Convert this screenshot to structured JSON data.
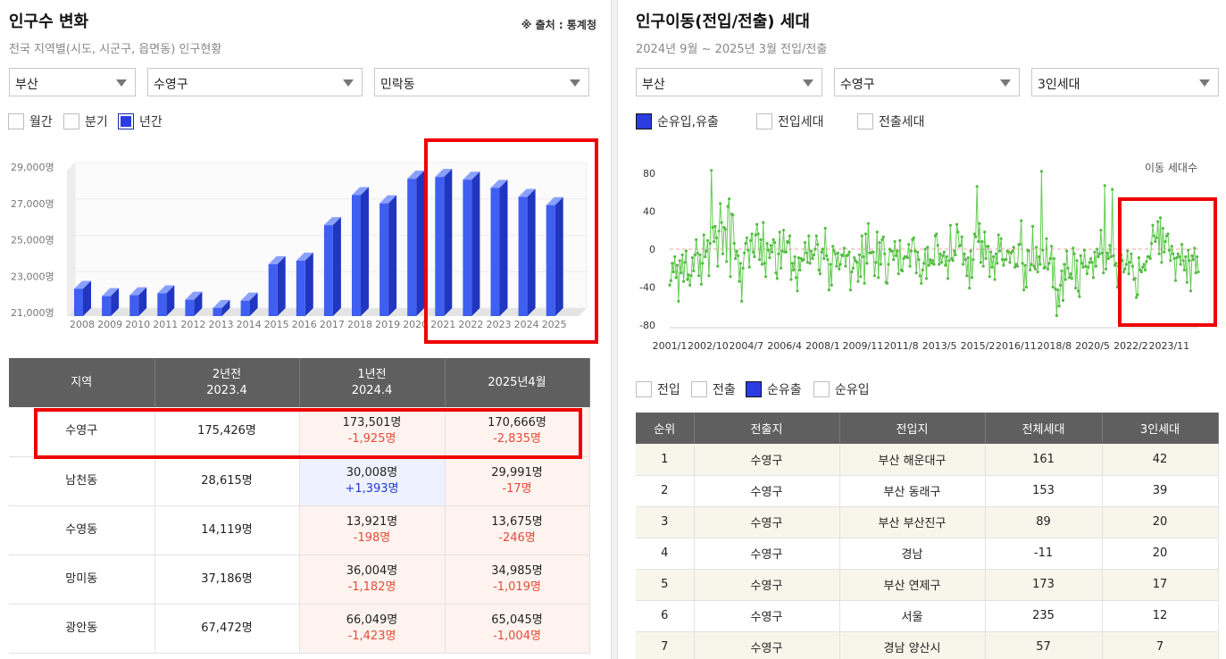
{
  "left": {
    "title": "인구수 변화",
    "source": "※ 출처 : 통계청",
    "subtitle": "전국 지역별(시도, 시군구, 읍면동) 인구현황",
    "selects": [
      "부산",
      "수영구",
      "민락동"
    ],
    "period_options": [
      {
        "label": "월간",
        "checked": false
      },
      {
        "label": "분기",
        "checked": false
      },
      {
        "label": "년간",
        "checked": true
      }
    ],
    "table": {
      "headers": [
        [
          "지역"
        ],
        [
          "2년전",
          "2023.4"
        ],
        [
          "1년전",
          "2024.4"
        ],
        [
          "2025년4월"
        ]
      ],
      "rows": [
        {
          "region": "수영구",
          "two_years": "175,426명",
          "one_year": "173,501명",
          "one_year_change": "-1,925명",
          "now": "170,666명",
          "now_change": "-2,835명"
        },
        {
          "region": "남천동",
          "two_years": "28,615명",
          "one_year": "30,008명",
          "one_year_change": "+1,393명",
          "now": "29,991명",
          "now_change": "-17명"
        },
        {
          "region": "수영동",
          "two_years": "14,119명",
          "one_year": "13,921명",
          "one_year_change": "-198명",
          "now": "13,675명",
          "now_change": "-246명"
        },
        {
          "region": "망미동",
          "two_years": "37,186명",
          "one_year": "36,004명",
          "one_year_change": "-1,182명",
          "now": "34,985명",
          "now_change": "-1,019명"
        },
        {
          "region": "광안동",
          "two_years": "67,472명",
          "one_year": "66,049명",
          "one_year_change": "-1,423명",
          "now": "65,045명",
          "now_change": "-1,004명"
        }
      ]
    }
  },
  "right": {
    "title": "인구이동(전입/전출) 세대",
    "subtitle": "2024년 9월 ~ 2025년 3월 전입/전출",
    "selects": [
      "부산",
      "수영구",
      "3인세대"
    ],
    "series_options": [
      {
        "label": "순유입,유출",
        "checked": true
      },
      {
        "label": "전입세대",
        "checked": false
      },
      {
        "label": "전출세대",
        "checked": false
      }
    ],
    "table_filters": [
      {
        "label": "전입",
        "checked": false
      },
      {
        "label": "전출",
        "checked": false
      },
      {
        "label": "순유출",
        "checked": true
      },
      {
        "label": "순유입",
        "checked": false
      }
    ],
    "table": {
      "headers": [
        "순위",
        "전출지",
        "전입지",
        "전체세대",
        "3인세대"
      ],
      "rows": [
        [
          "1",
          "수영구",
          "부산 해운대구",
          "161",
          "42"
        ],
        [
          "2",
          "수영구",
          "부산 동래구",
          "153",
          "39"
        ],
        [
          "3",
          "수영구",
          "부산 부산진구",
          "89",
          "20"
        ],
        [
          "4",
          "수영구",
          "경남",
          "-11",
          "20"
        ],
        [
          "5",
          "수영구",
          "부산 연제구",
          "173",
          "17"
        ],
        [
          "6",
          "수영구",
          "서울",
          "235",
          "12"
        ],
        [
          "7",
          "수영구",
          "경남 양산시",
          "57",
          "7"
        ]
      ]
    }
  },
  "chart_data": [
    {
      "type": "bar",
      "categories": [
        "2008",
        "2009",
        "2010",
        "2011",
        "2012",
        "2013",
        "2014",
        "2015",
        "2016",
        "2017",
        "2018",
        "2019",
        "2020",
        "2021",
        "2022",
        "2023",
        "2024",
        "2025"
      ],
      "values": [
        22500,
        22100,
        22150,
        22250,
        21900,
        21450,
        21850,
        23850,
        24050,
        26000,
        27650,
        27200,
        28550,
        28650,
        28500,
        28050,
        27550,
        27100
      ],
      "yticks": [
        "21,000명",
        "23,000명",
        "25,000명",
        "27,000명",
        "29,000명"
      ],
      "ylim": [
        21000,
        29000
      ],
      "color": "#3f5ff0"
    },
    {
      "type": "line",
      "title": "이동 세대수",
      "xticks": [
        "2001/1",
        "2002/10",
        "2004/7",
        "2006/4",
        "2008/1",
        "2009/11",
        "2011/8",
        "2013/5",
        "2015/2",
        "2016/11",
        "2018/8",
        "2020/5",
        "2022/2",
        "2023/11"
      ],
      "yticks": [
        "80",
        "40",
        "0",
        "-40",
        "-80"
      ],
      "ylim": [
        -80,
        80
      ],
      "x_range": [
        "2001/1",
        "2025/3"
      ],
      "values": [
        -38,
        -33,
        -15,
        -24,
        -8,
        -30,
        -17,
        -55,
        -12,
        -25,
        -6,
        -34,
        -14,
        -2,
        -32,
        -27,
        -38,
        -28,
        -9,
        -23,
        -6,
        10,
        -4,
        -28,
        -6,
        -37,
        -15,
        15,
        -8,
        -2,
        9,
        -28,
        6,
        83,
        23,
        8,
        24,
        12,
        -18,
        19,
        48,
        28,
        -5,
        23,
        21,
        -13,
        45,
        53,
        -29,
        37,
        36,
        6,
        -10,
        -2,
        -7,
        -34,
        -15,
        -55,
        -20,
        -4,
        6,
        12,
        -1,
        -19,
        9,
        16,
        -3,
        -8,
        15,
        26,
        16,
        -11,
        10,
        -16,
        28,
        -15,
        -29,
        6,
        -1,
        -9,
        4,
        -3,
        10,
        7,
        -25,
        -31,
        -5,
        18,
        -20,
        -2,
        20,
        -3,
        -3,
        8,
        7,
        14,
        -32,
        -15,
        -22,
        -8,
        -30,
        -44,
        -9,
        -22,
        -10,
        -12,
        -11,
        7,
        -4,
        -14,
        14,
        -15,
        -2,
        -10,
        -6,
        0,
        14,
        5,
        -22,
        -26,
        -3,
        0,
        -10,
        22,
        -7,
        -11,
        -43,
        -16,
        -38,
        3,
        -2,
        -5,
        -18,
        -4,
        -21,
        -16,
        -6,
        -7,
        1,
        -18,
        -7,
        -6,
        -3,
        -43,
        -24,
        -20,
        -9,
        -12,
        -14,
        -34,
        -6,
        -29,
        14,
        -8,
        -36,
        16,
        -15,
        27,
        -4,
        -4,
        -3,
        -3,
        -28,
        -14,
        18,
        -30,
        7,
        -16,
        10,
        13,
        -5,
        -35,
        -36,
        -16,
        0,
        -2,
        -2,
        -11,
        8,
        -7,
        -2,
        -26,
        9,
        -22,
        -23,
        -10,
        -8,
        -8,
        -9,
        5,
        -18,
        -2,
        10,
        12,
        -2,
        -25,
        -3,
        -11,
        -28,
        -36,
        -22,
        -15,
        0,
        -31,
        2,
        -17,
        -11,
        -15,
        -12,
        -16,
        14,
        16,
        4,
        -16,
        -5,
        -14,
        -7,
        -3,
        -17,
        -8,
        -31,
        -12,
        25,
        -10,
        -12,
        -2,
        -6,
        26,
        18,
        3,
        4,
        13,
        -16,
        -5,
        -11,
        -28,
        -9,
        -41,
        -2,
        -30,
        -11,
        16,
        13,
        66,
        8,
        27,
        -14,
        8,
        -18,
        18,
        -10,
        3,
        3,
        -29,
        -3,
        -19,
        -8,
        -32,
        -5,
        -15,
        15,
        -2,
        11,
        -11,
        -17,
        -11,
        -11,
        -2,
        -3,
        -14,
        -4,
        -2,
        2,
        -19,
        -16,
        -18,
        5,
        5,
        30,
        -15,
        -43,
        -17,
        -40,
        -1,
        -2,
        -22,
        -16,
        24,
        -18,
        -21,
        2,
        -24,
        -8,
        -16,
        82,
        -1,
        -20,
        -19,
        11,
        -21,
        -15,
        -10,
        3,
        -40,
        -10,
        -42,
        -70,
        -43,
        -60,
        -38,
        -23,
        -54,
        -16,
        -32,
        -2,
        -20,
        -30,
        -26,
        -31,
        1,
        -5,
        -41,
        -12,
        -44,
        -50,
        -7,
        -15,
        -19,
        -1,
        -18,
        -26,
        -19,
        -14,
        -10,
        -14,
        -30,
        -3,
        -18,
        0,
        -8,
        -5,
        20,
        -4,
        -25,
        67,
        -21,
        -4,
        -10,
        4,
        -8,
        63,
        -7,
        -17,
        -15,
        -40,
        -18,
        -3,
        -6,
        -12,
        -24,
        -21,
        -16,
        -2,
        -26,
        -14,
        -5,
        -18,
        -32,
        -31,
        -51,
        -48,
        -9,
        -22,
        -24,
        -19,
        -16,
        -22,
        -13,
        -8,
        -8,
        -10,
        6,
        25,
        14,
        8,
        12,
        29,
        -5,
        33,
        -14,
        22,
        -3,
        8,
        14,
        16,
        -1,
        -12,
        3,
        -5,
        -10,
        -33,
        -9,
        -5,
        -8,
        -16,
        5,
        -12,
        -22,
        -8,
        -35,
        -1,
        -12,
        -44,
        -7,
        -11,
        1,
        -25,
        -8,
        -24
      ]
    }
  ]
}
